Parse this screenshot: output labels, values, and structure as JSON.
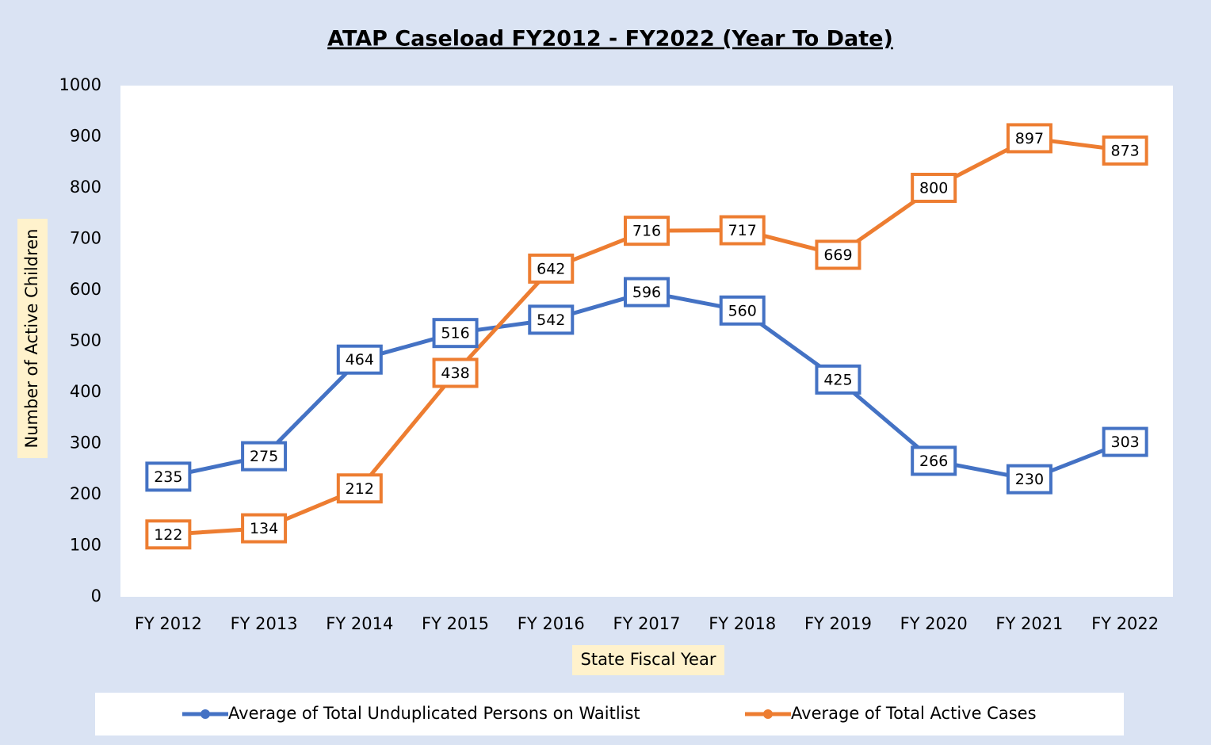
{
  "chart_data": {
    "type": "line",
    "title": "ATAP Caseload FY2012 - FY2022 (Year To Date)",
    "x_label": "State Fiscal Year",
    "y_label": "Number of Active Children",
    "categories": [
      "FY 2012",
      "FY 2013",
      "FY 2014",
      "FY 2015",
      "FY 2016",
      "FY 2017",
      "FY 2018",
      "FY 2019",
      "FY 2020",
      "FY 2021",
      "FY 2022"
    ],
    "series": [
      {
        "name": "Average of Total Unduplicated Persons on Waitlist",
        "color": "#4472c4",
        "values": [
          235,
          275,
          464,
          516,
          542,
          596,
          560,
          425,
          266,
          230,
          303
        ]
      },
      {
        "name": "Average of Total Active Cases",
        "color": "#ed7d31",
        "values": [
          122,
          134,
          212,
          438,
          642,
          716,
          717,
          669,
          800,
          897,
          873
        ]
      }
    ],
    "ylim": [
      0,
      1000
    ],
    "yticks": [
      0,
      100,
      200,
      300,
      400,
      500,
      600,
      700,
      800,
      900,
      1000
    ],
    "grid": false,
    "legend": "bottom"
  }
}
